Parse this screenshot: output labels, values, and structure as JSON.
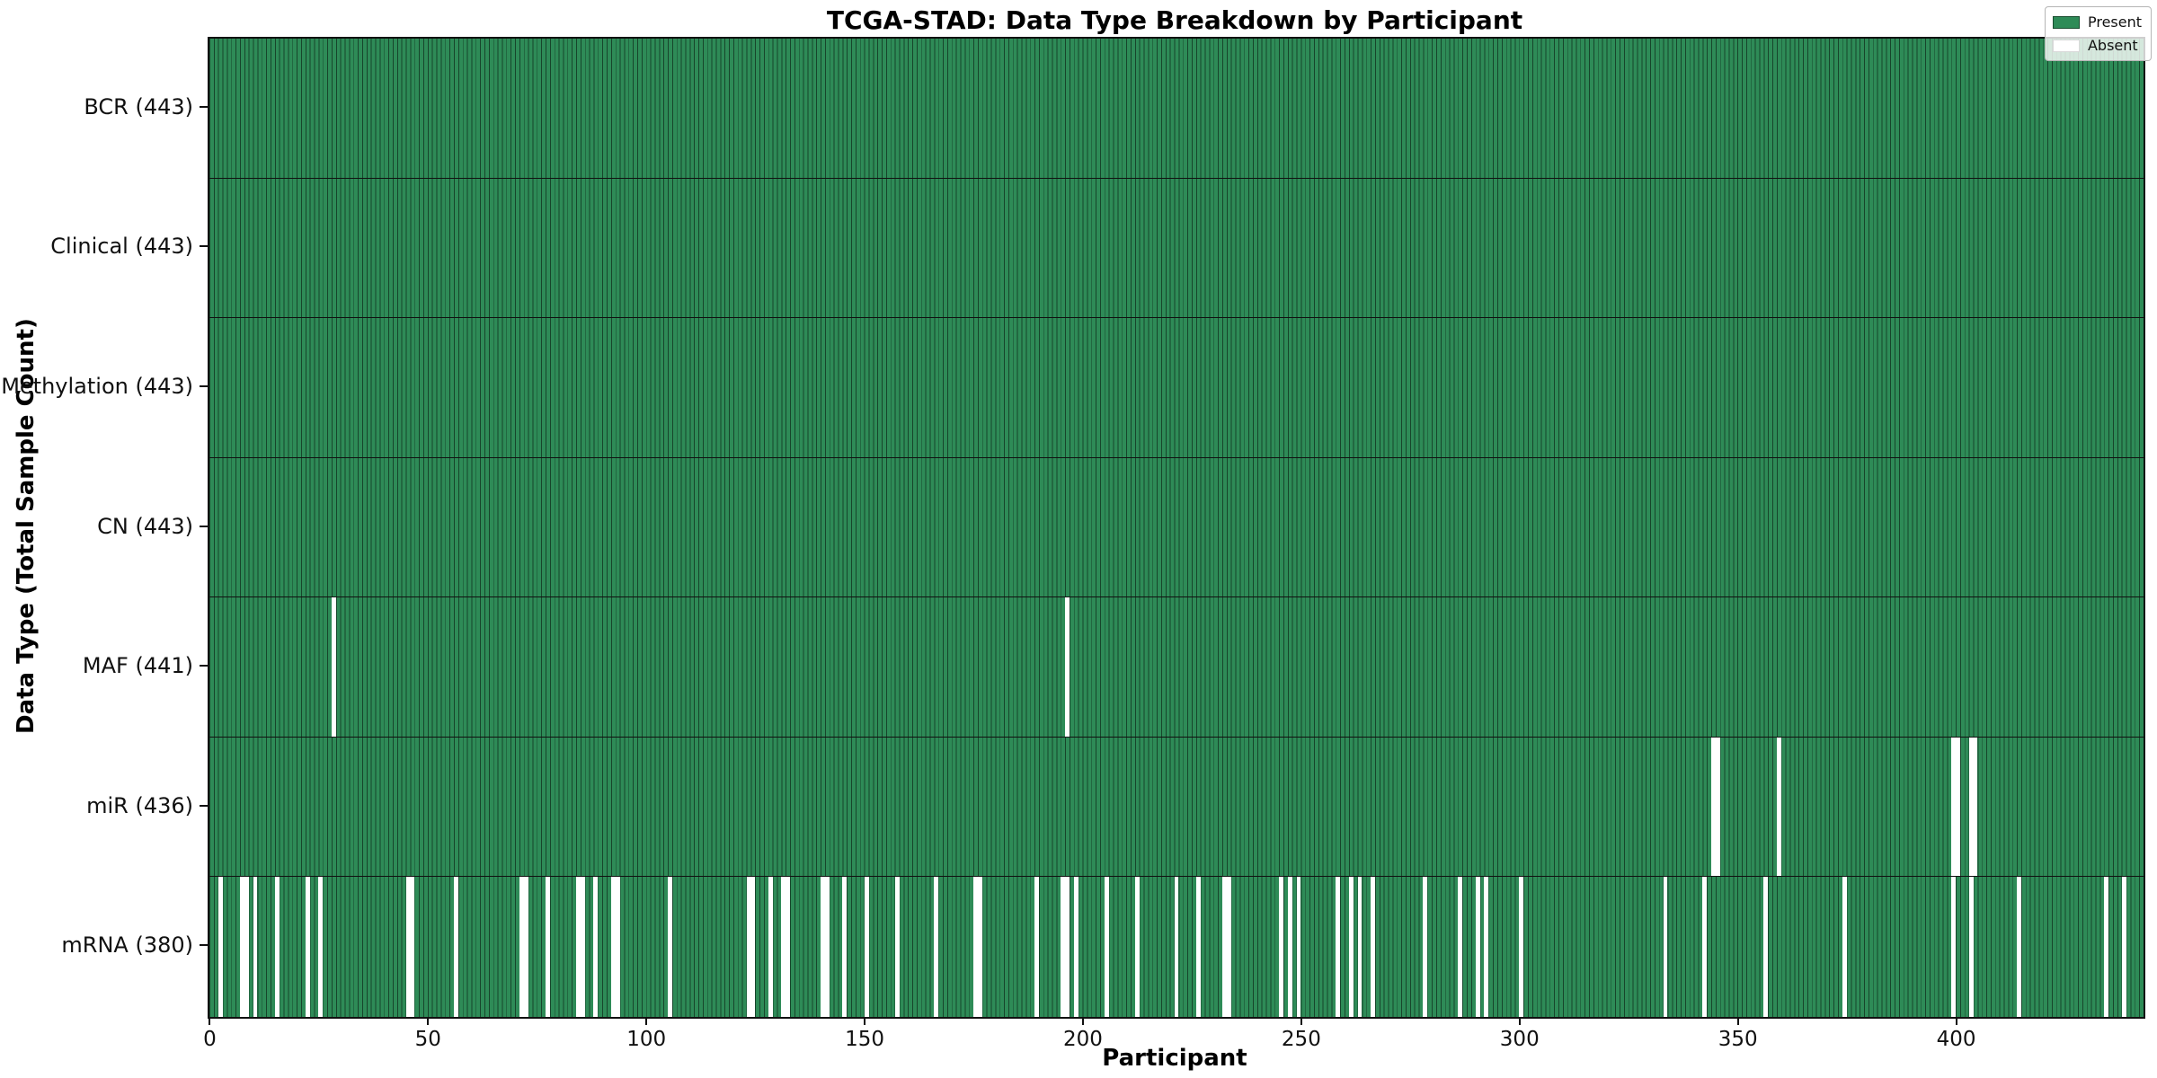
{
  "chart_data": {
    "type": "heatmap",
    "title": "TCGA-STAD: Data Type Breakdown by Participant",
    "xlabel": "Participant",
    "ylabel": "Data Type (Total Sample Count)",
    "n_participants": 443,
    "x_range": [
      -0.5,
      442.5
    ],
    "xticks": [
      0,
      50,
      100,
      150,
      200,
      250,
      300,
      350,
      400
    ],
    "grid": false,
    "legend": {
      "position": "upper right",
      "entries": [
        {
          "label": "Present",
          "color": "#2e8b57"
        },
        {
          "label": "Absent",
          "color": "#ffffff"
        }
      ]
    },
    "colors": {
      "present": "#2e8b57",
      "absent": "#ffffff",
      "bar_edge": "rgba(0,0,0,0.5)",
      "row_separator": "#111111"
    },
    "rows": [
      {
        "label": "BCR (443)",
        "data_type": "BCR",
        "total_samples": 443,
        "absent_participants": []
      },
      {
        "label": "Clinical (443)",
        "data_type": "Clinical",
        "total_samples": 443,
        "absent_participants": []
      },
      {
        "label": "Methylation (443)",
        "data_type": "Methylation",
        "total_samples": 443,
        "absent_participants": []
      },
      {
        "label": "CN (443)",
        "data_type": "CN",
        "total_samples": 443,
        "absent_participants": []
      },
      {
        "label": "MAF (441)",
        "data_type": "MAF",
        "total_samples": 441,
        "absent_participants": [
          28,
          196
        ]
      },
      {
        "label": "miR (436)",
        "data_type": "miR",
        "total_samples": 436,
        "absent_participants": [
          344,
          345,
          359,
          399,
          400,
          403,
          404
        ]
      },
      {
        "label": "mRNA (380)",
        "data_type": "mRNA",
        "total_samples": 380,
        "absent_participants": [
          2,
          7,
          8,
          10,
          15,
          22,
          25,
          45,
          46,
          56,
          71,
          72,
          77,
          84,
          85,
          88,
          92,
          93,
          105,
          123,
          124,
          128,
          131,
          132,
          140,
          141,
          145,
          150,
          157,
          166,
          175,
          176,
          189,
          195,
          196,
          198,
          205,
          212,
          221,
          226,
          232,
          233,
          245,
          247,
          249,
          258,
          261,
          263,
          266,
          278,
          286,
          290,
          292,
          300,
          333,
          342,
          356,
          374,
          399,
          403,
          414,
          434,
          438
        ]
      }
    ]
  }
}
